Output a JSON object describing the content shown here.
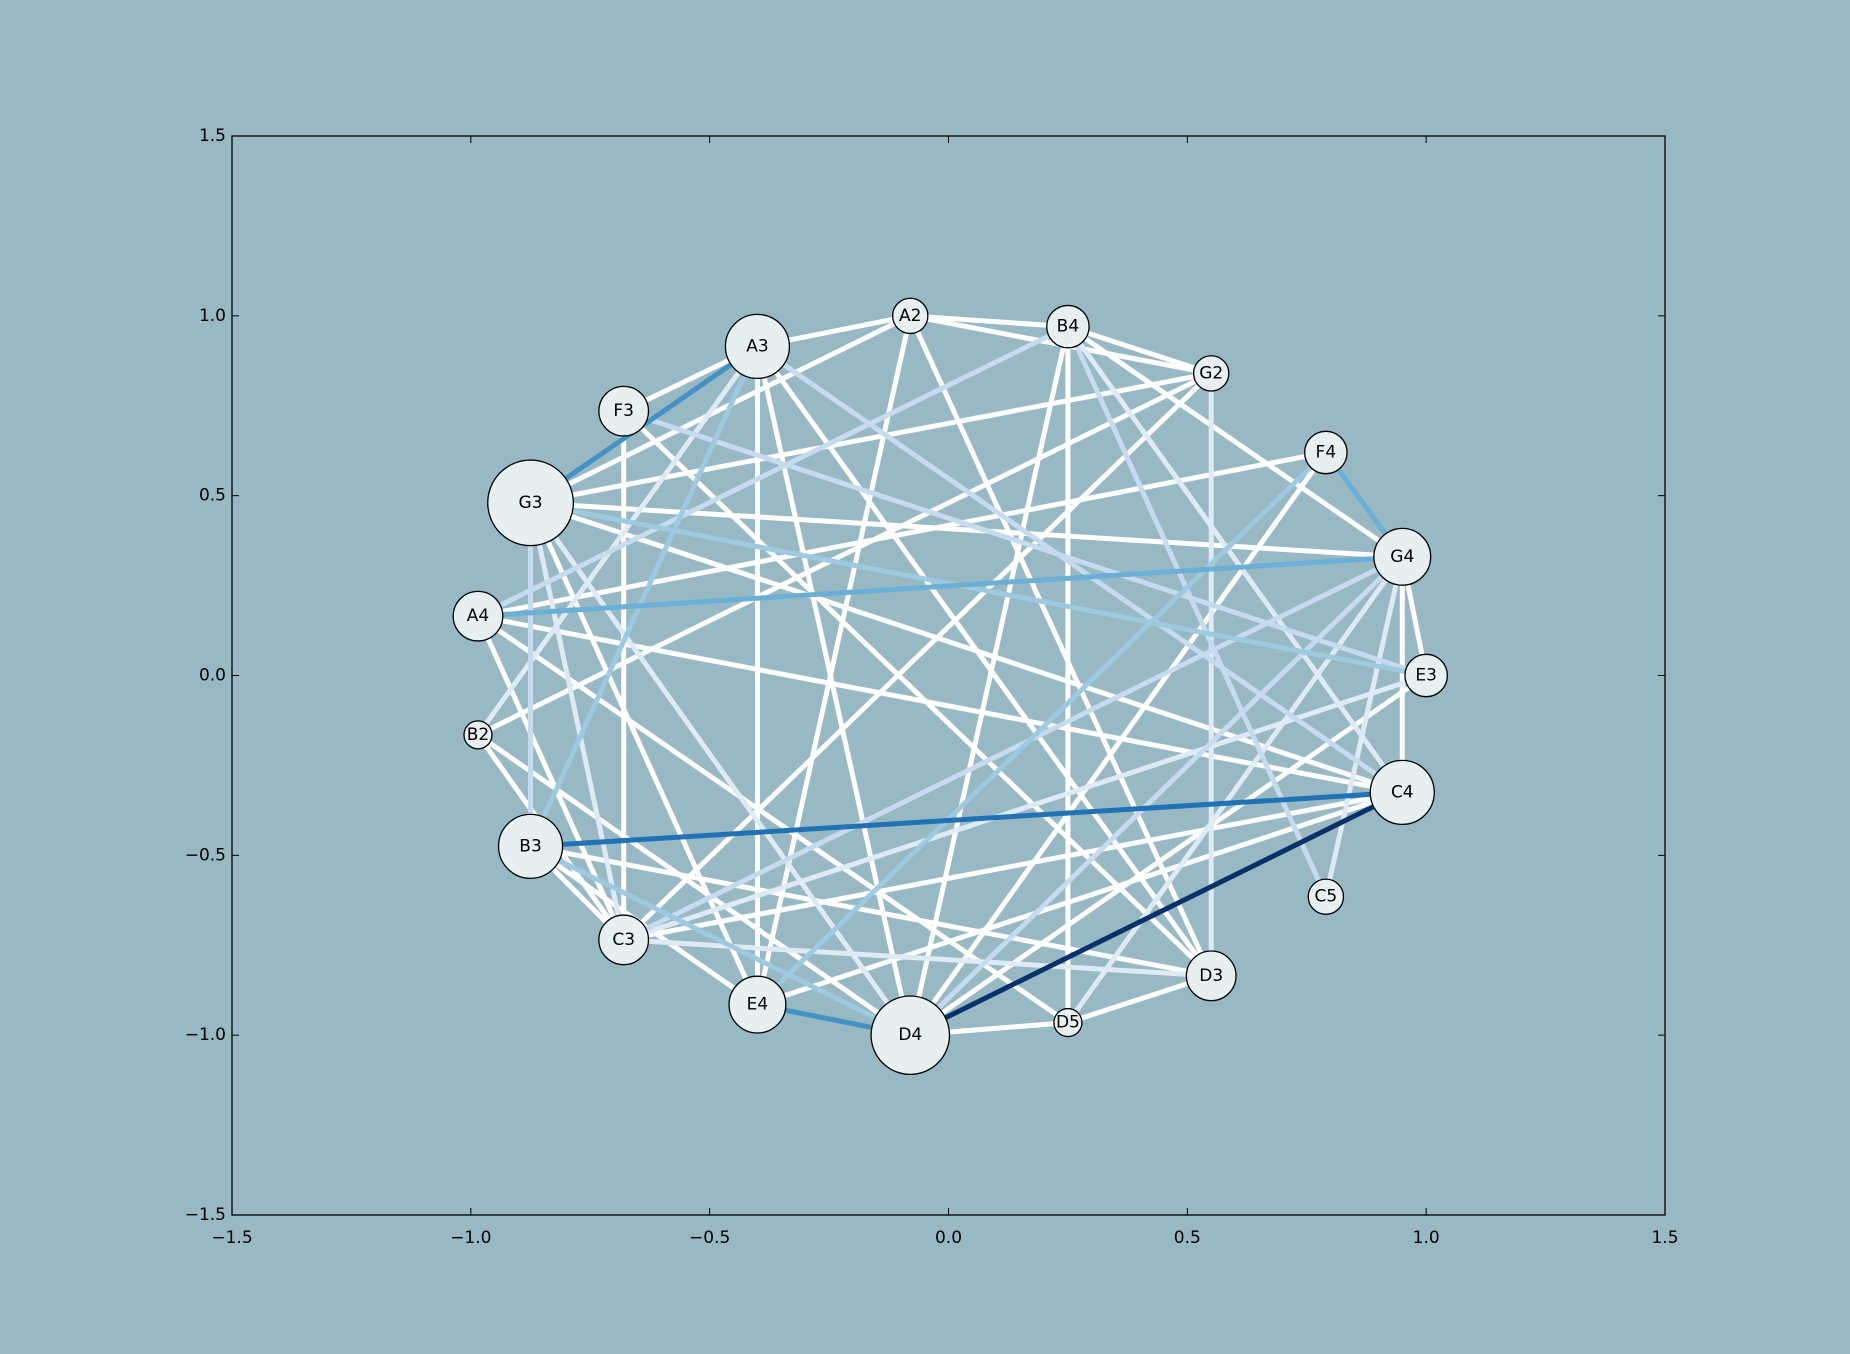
{
  "chart_data": {
    "type": "network",
    "xlim": [
      -1.5,
      1.5
    ],
    "ylim": [
      -1.5,
      1.5
    ],
    "x_ticks": [
      "-1.5",
      "-1.0",
      "-0.5",
      "0.0",
      "0.5",
      "1.0",
      "1.5"
    ],
    "y_ticks": [
      "1.5",
      "1.0",
      "0.5",
      "0.0",
      "-0.5",
      "-1.0",
      "-1.5"
    ],
    "x_tick_values": [
      -1.5,
      -1.0,
      -0.5,
      0.0,
      0.5,
      1.0,
      1.5
    ],
    "y_tick_values": [
      1.5,
      1.0,
      0.5,
      0.0,
      -0.5,
      -1.0,
      -1.5
    ],
    "grid": false,
    "colors": {
      "background": "#98b8c3",
      "node_fill": "#e6eff2",
      "node_stroke": "#000000",
      "edge_scale": [
        "#ffffff",
        "#deebf7",
        "#c6dbef",
        "#9ecae1",
        "#6baed6",
        "#4292c6",
        "#2171b5",
        "#08306b"
      ]
    },
    "nodes": [
      {
        "id": "A2",
        "x": -0.08,
        "y": 1.0,
        "weight": 1
      },
      {
        "id": "B4",
        "x": 0.25,
        "y": 0.97,
        "weight": 2
      },
      {
        "id": "G2",
        "x": 0.55,
        "y": 0.84,
        "weight": 1
      },
      {
        "id": "F4",
        "x": 0.79,
        "y": 0.62,
        "weight": 2
      },
      {
        "id": "G4",
        "x": 0.95,
        "y": 0.33,
        "weight": 4
      },
      {
        "id": "E3",
        "x": 1.0,
        "y": 0.0,
        "weight": 2
      },
      {
        "id": "C4",
        "x": 0.95,
        "y": -0.325,
        "weight": 5
      },
      {
        "id": "C5",
        "x": 0.79,
        "y": -0.615,
        "weight": 1
      },
      {
        "id": "D3",
        "x": 0.55,
        "y": -0.835,
        "weight": 3
      },
      {
        "id": "D5",
        "x": 0.25,
        "y": -0.965,
        "weight": 0
      },
      {
        "id": "D4",
        "x": -0.08,
        "y": -1.0,
        "weight": 7
      },
      {
        "id": "E4",
        "x": -0.4,
        "y": -0.915,
        "weight": 4
      },
      {
        "id": "C3",
        "x": -0.68,
        "y": -0.735,
        "weight": 3
      },
      {
        "id": "B3",
        "x": -0.875,
        "y": -0.475,
        "weight": 5
      },
      {
        "id": "B2",
        "x": -0.985,
        "y": -0.165,
        "weight": 0
      },
      {
        "id": "A4",
        "x": -0.985,
        "y": 0.165,
        "weight": 3
      },
      {
        "id": "G3",
        "x": -0.875,
        "y": 0.48,
        "weight": 8
      },
      {
        "id": "F3",
        "x": -0.68,
        "y": 0.735,
        "weight": 3
      },
      {
        "id": "A3",
        "x": -0.4,
        "y": 0.915,
        "weight": 5
      }
    ],
    "edges": [
      {
        "source": "C4",
        "target": "D4",
        "strength": 7
      },
      {
        "source": "B3",
        "target": "C4",
        "strength": 6
      },
      {
        "source": "G3",
        "target": "A3",
        "strength": 5
      },
      {
        "source": "E4",
        "target": "D4",
        "strength": 5
      },
      {
        "source": "F4",
        "target": "G4",
        "strength": 4
      },
      {
        "source": "A4",
        "target": "G4",
        "strength": 4
      },
      {
        "source": "B3",
        "target": "D4",
        "strength": 3
      },
      {
        "source": "B3",
        "target": "A3",
        "strength": 3
      },
      {
        "source": "G3",
        "target": "E3",
        "strength": 3
      },
      {
        "source": "E4",
        "target": "F4",
        "strength": 3
      },
      {
        "source": "A4",
        "target": "B4",
        "strength": 2
      },
      {
        "source": "C3",
        "target": "G4",
        "strength": 2
      },
      {
        "source": "D4",
        "target": "G4",
        "strength": 2
      },
      {
        "source": "G3",
        "target": "B3",
        "strength": 2
      },
      {
        "source": "F3",
        "target": "E3",
        "strength": 2
      },
      {
        "source": "A3",
        "target": "C4",
        "strength": 2
      },
      {
        "source": "B4",
        "target": "C5",
        "strength": 2
      },
      {
        "source": "G2",
        "target": "D3",
        "strength": 1
      },
      {
        "source": "B2",
        "target": "A3",
        "strength": 1
      },
      {
        "source": "G3",
        "target": "D4",
        "strength": 1
      },
      {
        "source": "G3",
        "target": "C3",
        "strength": 1
      },
      {
        "source": "D5",
        "target": "G4",
        "strength": 1
      },
      {
        "source": "C3",
        "target": "E3",
        "strength": 1
      },
      {
        "source": "C5",
        "target": "G4",
        "strength": 1
      },
      {
        "source": "C3",
        "target": "D3",
        "strength": 1
      },
      {
        "source": "B4",
        "target": "C4",
        "strength": 1
      },
      {
        "source": "G3",
        "target": "A2",
        "strength": 0
      },
      {
        "source": "A3",
        "target": "A2",
        "strength": 0
      },
      {
        "source": "A2",
        "target": "B4",
        "strength": 0
      },
      {
        "source": "A2",
        "target": "G2",
        "strength": 0
      },
      {
        "source": "B4",
        "target": "G2",
        "strength": 0
      },
      {
        "source": "F3",
        "target": "A3",
        "strength": 0
      },
      {
        "source": "G3",
        "target": "G4",
        "strength": 0
      },
      {
        "source": "A4",
        "target": "F4",
        "strength": 0
      },
      {
        "source": "G3",
        "target": "G2",
        "strength": 0
      },
      {
        "source": "A2",
        "target": "E4",
        "strength": 0
      },
      {
        "source": "A2",
        "target": "D3",
        "strength": 0
      },
      {
        "source": "B4",
        "target": "D4",
        "strength": 0
      },
      {
        "source": "B4",
        "target": "D5",
        "strength": 0
      },
      {
        "source": "B4",
        "target": "G4",
        "strength": 0
      },
      {
        "source": "G2",
        "target": "C3",
        "strength": 0
      },
      {
        "source": "G2",
        "target": "B2",
        "strength": 0
      },
      {
        "source": "F4",
        "target": "D4",
        "strength": 0
      },
      {
        "source": "G4",
        "target": "E3",
        "strength": 0
      },
      {
        "source": "G4",
        "target": "C4",
        "strength": 0
      },
      {
        "source": "E3",
        "target": "D4",
        "strength": 0
      },
      {
        "source": "C4",
        "target": "C3",
        "strength": 0
      },
      {
        "source": "C4",
        "target": "A4",
        "strength": 0
      },
      {
        "source": "C4",
        "target": "G3",
        "strength": 0
      },
      {
        "source": "C4",
        "target": "E4",
        "strength": 0
      },
      {
        "source": "D3",
        "target": "F3",
        "strength": 0
      },
      {
        "source": "D3",
        "target": "B3",
        "strength": 0
      },
      {
        "source": "D3",
        "target": "A3",
        "strength": 0
      },
      {
        "source": "D3",
        "target": "D5",
        "strength": 0
      },
      {
        "source": "D5",
        "target": "A4",
        "strength": 0
      },
      {
        "source": "D5",
        "target": "D4",
        "strength": 0
      },
      {
        "source": "C3",
        "target": "A4",
        "strength": 0
      },
      {
        "source": "C3",
        "target": "B2",
        "strength": 0
      },
      {
        "source": "C3",
        "target": "F3",
        "strength": 0
      },
      {
        "source": "B3",
        "target": "E4",
        "strength": 0
      },
      {
        "source": "B3",
        "target": "C3",
        "strength": 0
      },
      {
        "source": "E4",
        "target": "G3",
        "strength": 0
      },
      {
        "source": "E4",
        "target": "A3",
        "strength": 0
      },
      {
        "source": "D4",
        "target": "A3",
        "strength": 0
      },
      {
        "source": "D4",
        "target": "B2",
        "strength": 0
      }
    ]
  }
}
